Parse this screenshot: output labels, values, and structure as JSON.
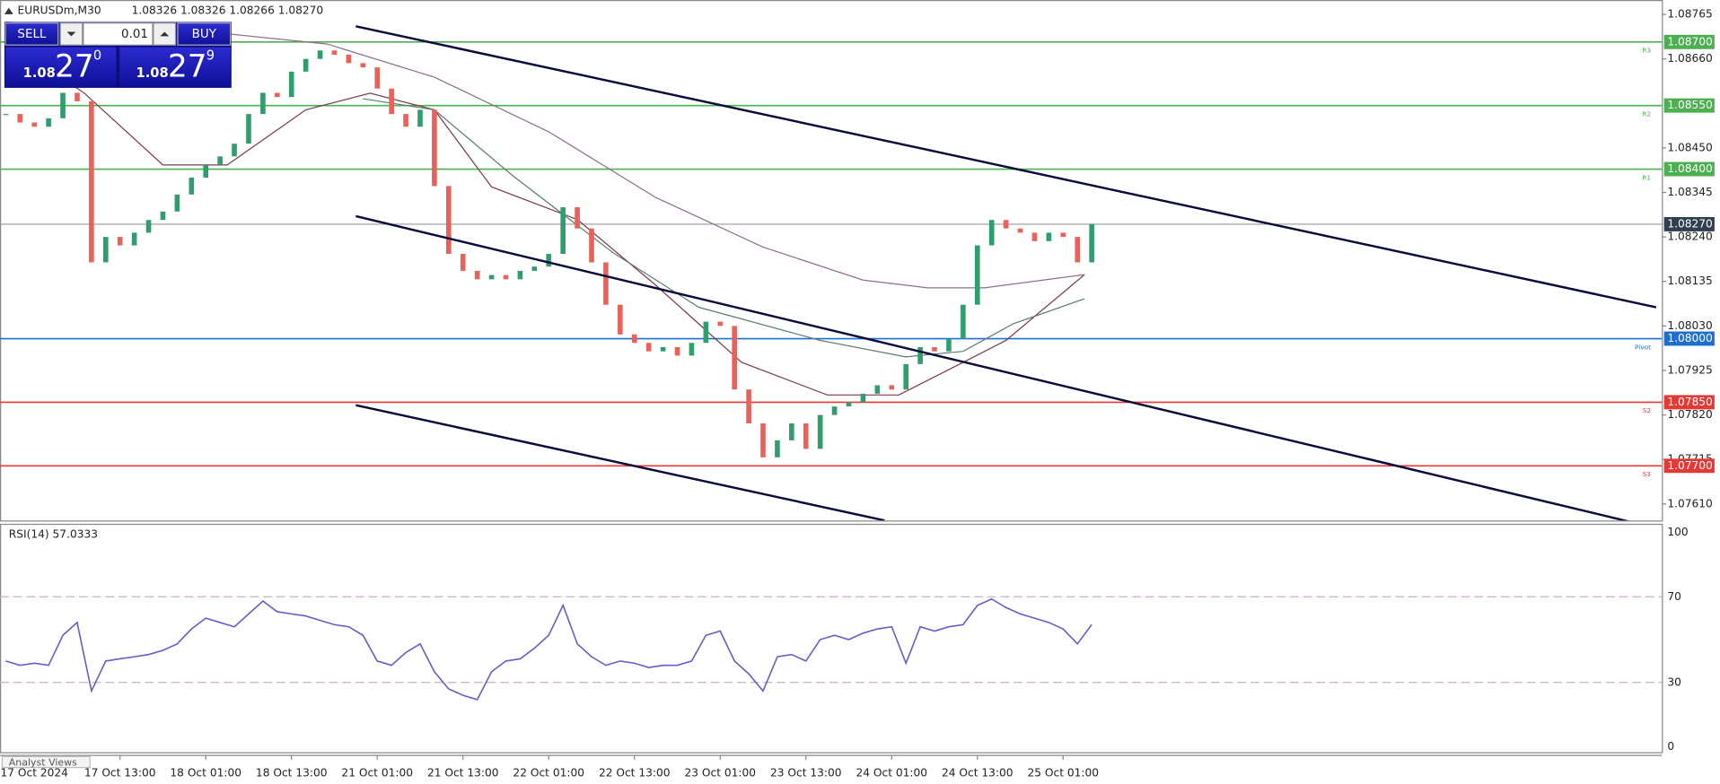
{
  "chart_data": {
    "type": "candlestick",
    "symbol": "EURUSDm,M30",
    "ohlc_label": "1.08326 1.08326 1.08266 1.08270",
    "x": [
      -3,
      -1,
      1,
      3,
      5,
      7,
      9,
      11,
      13,
      15,
      17,
      19,
      21,
      23,
      25,
      27,
      29,
      31,
      33,
      35,
      37,
      39,
      41,
      43,
      45,
      47,
      49,
      51,
      53,
      55,
      57,
      59,
      61,
      63,
      65,
      67,
      69,
      71,
      73,
      75,
      77,
      79,
      81,
      83,
      85,
      87,
      89,
      91,
      93,
      95,
      97,
      99,
      101,
      103,
      105,
      107,
      109,
      111,
      113,
      115,
      117,
      119,
      121,
      123,
      125,
      127,
      129,
      131,
      133,
      135,
      137,
      139,
      141,
      143,
      145,
      147,
      149
    ],
    "series": [
      {
        "color_up": "#2f9e6f",
        "color_down": "#e8625a",
        "values": [
          1.0853,
          1.0851,
          1.085,
          1.0852,
          1.0858,
          1.0856,
          1.0818,
          1.0824,
          1.0822,
          1.0825,
          1.0828,
          1.083,
          1.0834,
          1.0838,
          1.0841,
          1.0843,
          1.0846,
          1.0853,
          1.0858,
          1.0857,
          1.0863,
          1.0866,
          1.0868,
          1.0867,
          1.0865,
          1.0864,
          1.0859,
          1.0853,
          1.085,
          1.0854,
          1.0836,
          1.082,
          1.0816,
          1.0814,
          1.0815,
          1.0814,
          1.0816,
          1.0817,
          1.082,
          1.0831,
          1.0826,
          1.0818,
          1.0808,
          1.0801,
          1.0799,
          1.0797,
          1.0798,
          1.0796,
          1.0799,
          1.0804,
          1.0803,
          1.0788,
          1.078,
          1.0772,
          1.0776,
          1.078,
          1.0774,
          1.0782,
          1.0784,
          1.0785,
          1.0787,
          1.0789,
          1.0788,
          1.0794,
          1.0798,
          1.0797,
          1.08,
          1.0808,
          1.0822,
          1.0828,
          1.0826,
          1.0825,
          1.0823,
          1.0825,
          1.0824,
          1.0818,
          1.0827
        ]
      }
    ],
    "moving_averages": [
      {
        "color": "#7b3b4b",
        "x": [
          -2,
          8,
          19,
          28,
          39,
          48,
          57,
          65,
          77,
          88,
          100,
          112,
          122,
          131,
          137,
          148
        ],
        "values": [
          1.08695,
          1.08579,
          1.0841,
          1.0841,
          1.0854,
          1.08579,
          1.0854,
          1.08358,
          1.08281,
          1.08126,
          1.07944,
          1.07867,
          1.07867,
          1.07944,
          1.07996,
          1.08151
        ]
      },
      {
        "color": "#5d7d6d",
        "x": [
          47,
          57,
          68,
          82,
          94,
          111,
          123,
          131,
          138,
          148
        ],
        "values": [
          1.08566,
          1.0854,
          1.08384,
          1.08203,
          1.08074,
          1.07996,
          1.07957,
          1.0797,
          1.08035,
          1.08094
        ]
      },
      {
        "color": "#8e6f8e",
        "x": [
          -3,
          27,
          42,
          57,
          73,
          88,
          103,
          117,
          126,
          134,
          148
        ],
        "values": [
          1.08747,
          1.08721,
          1.08695,
          1.08617,
          1.08488,
          1.08333,
          1.08216,
          1.08138,
          1.0812,
          1.0812,
          1.08151
        ]
      }
    ],
    "trendlines": [
      {
        "color": "#0b0b3b",
        "x": [
          46,
          228
        ],
        "values": [
          1.08737,
          1.08074
        ]
      },
      {
        "color": "#0b0b3b",
        "x": [
          46,
          228
        ],
        "values": [
          1.08289,
          1.07553
        ]
      },
      {
        "color": "#0b0b3b",
        "x": [
          46,
          120
        ],
        "values": [
          1.07843,
          1.07571
        ]
      }
    ],
    "levels": [
      {
        "value": 1.087,
        "price_label": "1.08700",
        "name": "R3",
        "color": "#4caf50"
      },
      {
        "value": 1.0855,
        "price_label": "1.08550",
        "name": "R2",
        "color": "#4caf50"
      },
      {
        "value": 1.084,
        "price_label": "1.08400",
        "name": "R1",
        "color": "#4caf50"
      },
      {
        "value": 1.08,
        "price_label": "1.08000",
        "name": "Pivot",
        "color": "#1e6fd0"
      },
      {
        "value": 1.0785,
        "price_label": "1.07850",
        "name": "S2",
        "color": "#e53935"
      },
      {
        "value": 1.077,
        "price_label": "1.07700",
        "name": "S3",
        "color": "#e53935"
      }
    ],
    "current_price": {
      "value": 1.0827,
      "label": "1.08270"
    },
    "xlim": [
      -3.8,
      228.8
    ],
    "ylim": [
      1.07571,
      1.08799
    ],
    "yticks": [
      1.08765,
      {
        "value": 1.0866,
        "label": "1.08660"
      },
      {
        "value": 1.0845,
        "label": "1.08450"
      },
      1.08345,
      {
        "value": 1.0824,
        "label": "1.08240"
      },
      1.08135,
      {
        "value": 1.0803,
        "label": "1.08030"
      },
      1.07925,
      {
        "value": 1.0782,
        "label": "1.07820"
      },
      1.07715,
      {
        "value": 1.0761,
        "label": "1.07610"
      }
    ],
    "xticks": [
      {
        "value": 1,
        "label": "17 Oct 2024"
      },
      {
        "value": 13,
        "label": "17 Oct 13:00"
      },
      {
        "value": 25,
        "label": "18 Oct 01:00"
      },
      {
        "value": 37,
        "label": "18 Oct 13:00"
      },
      {
        "value": 49,
        "label": "21 Oct 01:00"
      },
      {
        "value": 61,
        "label": "21 Oct 13:00"
      },
      {
        "value": 73,
        "label": "22 Oct 01:00"
      },
      {
        "value": 85,
        "label": "22 Oct 13:00"
      },
      {
        "value": 97,
        "label": "23 Oct 01:00"
      },
      {
        "value": 109,
        "label": "23 Oct 13:00"
      },
      {
        "value": 121,
        "label": "24 Oct 01:00"
      },
      {
        "value": 133,
        "label": "24 Oct 13:00"
      },
      {
        "value": 145,
        "label": "25 Oct 01:00"
      }
    ],
    "rsi": {
      "title": "RSI(14) 57.0333",
      "color": "#6a5acd",
      "values": [
        40,
        38,
        39,
        38,
        52,
        58,
        26,
        40,
        41,
        42,
        43,
        45,
        48,
        55,
        60,
        58,
        56,
        62,
        68,
        63,
        62,
        61,
        59,
        57,
        56,
        52,
        40,
        38,
        44,
        48,
        35,
        27,
        24,
        22,
        35,
        40,
        41,
        46,
        52,
        66,
        48,
        42,
        38,
        40,
        39,
        37,
        38,
        38,
        40,
        52,
        54,
        40,
        34,
        26,
        42,
        43,
        40,
        50,
        52,
        50,
        53,
        55,
        56,
        39,
        56,
        54,
        56,
        57,
        66,
        69,
        65,
        62,
        60,
        58,
        55,
        48,
        57.0333
      ],
      "ylim": [
        0,
        100
      ],
      "yticks": [
        100,
        70,
        30,
        0
      ]
    }
  },
  "trade_panel": {
    "sell": "SELL",
    "buy": "BUY",
    "volume": "0.01",
    "bid": {
      "prefix": "1.08",
      "big": "27",
      "small": "0"
    },
    "ask": {
      "prefix": "1.08",
      "big": "27",
      "small": "9"
    }
  },
  "footer": {
    "tab": "Analyst Views"
  }
}
